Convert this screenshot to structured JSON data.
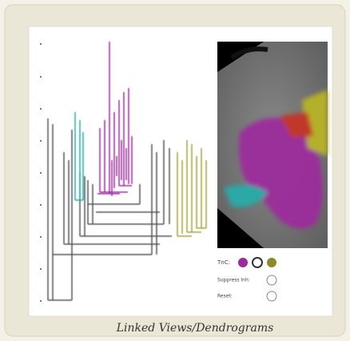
{
  "caption": "Linked Views/Dendrograms",
  "legend": {
    "rows": [
      {
        "label": "TnC:"
      },
      {
        "label": "Suppress Inh:"
      },
      {
        "label": "Reset:"
      }
    ]
  }
}
